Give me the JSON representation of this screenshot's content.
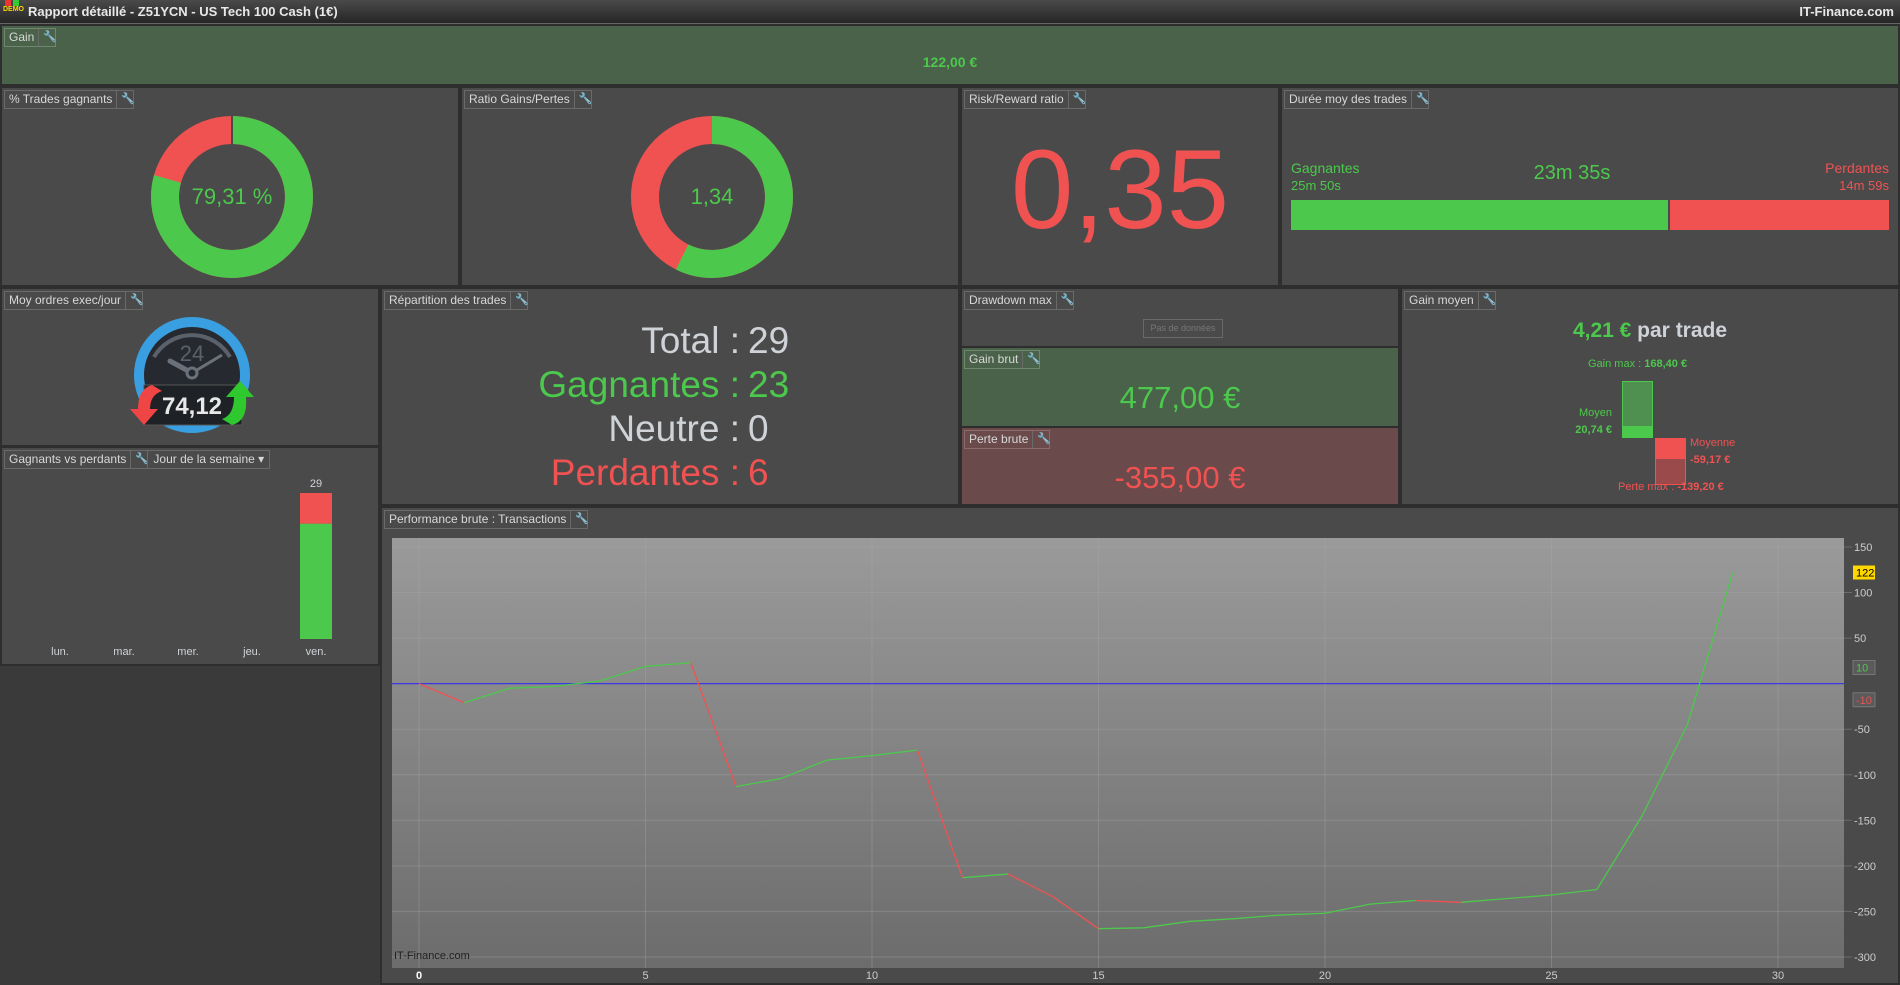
{
  "window": {
    "title": "Rapport détaillé - Z51YCN - US Tech 100 Cash (1€)",
    "brand": "IT-Finance.com",
    "demo_badge": "DEMO"
  },
  "colors": {
    "green": "#4cc94c",
    "red": "#f05252",
    "panel": "#4a4a4a",
    "gain_bg": "#4a624a",
    "loss_bg": "#6a4a4a",
    "blue_line": "#3a3ae0",
    "badge_yellow": "#ffd800"
  },
  "icons": {
    "settings": "wrench-icon",
    "dropdown": "chevron-down-icon",
    "gauge": "clock-gauge-icon"
  },
  "gain": {
    "label": "Gain",
    "value": "122,00 €"
  },
  "win_rate": {
    "label": "% Trades gagnants",
    "value_text": "79,31 %",
    "percent": 79.31
  },
  "ratio": {
    "label": "Ratio Gains/Pertes",
    "value_text": "1,34",
    "gains": 477,
    "losses": 355
  },
  "risk_reward": {
    "label": "Risk/Reward ratio",
    "value": "0,35"
  },
  "duration": {
    "label": "Durée moy des trades",
    "win_label": "Gagnantes",
    "win_value": "25m 50s",
    "avg_value": "23m 35s",
    "loss_label": "Perdantes",
    "loss_value": "14m 59s",
    "win_fraction": 0.633
  },
  "orders": {
    "label": "Moy ordres exec/jour",
    "gauge_hours": "24",
    "value": "74,12"
  },
  "wins_losses": {
    "label": "Gagnants vs perdants",
    "dropdown": "Jour de la semaine",
    "chart_data": {
      "type": "bar",
      "stacked": true,
      "categories": [
        "lun.",
        "mar.",
        "mer.",
        "jeu.",
        "ven."
      ],
      "series": [
        {
          "color": "#4cc94c",
          "values": [
            0,
            0,
            0,
            0,
            23
          ]
        },
        {
          "color": "#f05252",
          "values": [
            0,
            0,
            0,
            0,
            6
          ]
        }
      ],
      "totals": [
        "",
        "",
        "",
        "",
        "29"
      ]
    }
  },
  "distribution": {
    "label": "Répartition des trades",
    "rows": [
      {
        "label": "Total :",
        "value": "29",
        "color": "#cfd3d8"
      },
      {
        "label": "Gagnantes :",
        "value": "23",
        "color": "#4cc94c"
      },
      {
        "label": "Neutre :",
        "value": "0",
        "color": "#cfd3d8"
      },
      {
        "label": "Perdantes :",
        "value": "6",
        "color": "#f05252"
      }
    ]
  },
  "drawdown": {
    "label": "Drawdown max",
    "empty": "Pas de données"
  },
  "gross_gain": {
    "label": "Gain brut",
    "value": "477,00 €"
  },
  "gross_loss": {
    "label": "Perte brute",
    "value": "-355,00 €"
  },
  "avg_gain": {
    "label": "Gain moyen",
    "value": "4,21 €",
    "suffix": " par trade",
    "max_gain_label": "Gain max :",
    "max_gain": "168,40 €",
    "avg_win_label": "Moyen",
    "avg_win": "20,74 €",
    "avg_loss_label": "Moyenne",
    "avg_loss": "-59,17 €",
    "max_loss_label": "Perte max :",
    "max_loss": "-139,20 €"
  },
  "performance": {
    "label": "Performance brute : Transactions",
    "watermark": "IT-Finance.com",
    "chart_data": {
      "type": "line",
      "x": [
        0,
        1,
        2,
        3,
        4,
        5,
        6,
        7,
        8,
        9,
        10,
        11,
        12,
        13,
        14,
        15,
        16,
        17,
        18,
        19,
        20,
        21,
        22,
        23,
        24,
        25,
        26,
        27,
        28,
        29
      ],
      "y": [
        0,
        -21,
        -5,
        -3,
        3,
        19,
        23,
        -113,
        -104,
        -84,
        -79,
        -73,
        -213,
        -209,
        -234,
        -269,
        -268,
        -261,
        -258,
        -254,
        -252,
        -242,
        -238,
        -240,
        -236,
        -232,
        -226,
        -145,
        -45,
        122
      ],
      "xlim": [
        -1,
        32
      ],
      "ylim": [
        -300,
        150
      ],
      "xticks": [
        0,
        5,
        10,
        15,
        20,
        25,
        30
      ],
      "yticks": [
        150,
        100,
        50,
        -50,
        -100,
        -150,
        -200,
        -250,
        -300
      ],
      "grid": true,
      "rising_color": "#4cc94c",
      "falling_color": "#f05252",
      "zero_line": 0,
      "badges": [
        {
          "text": "122",
          "value": 122,
          "color": "#ffd800"
        },
        {
          "text": "10",
          "value": 10,
          "color": "#4cc94c"
        },
        {
          "text": "-10",
          "value": -10,
          "color": "#f05252"
        }
      ]
    }
  }
}
